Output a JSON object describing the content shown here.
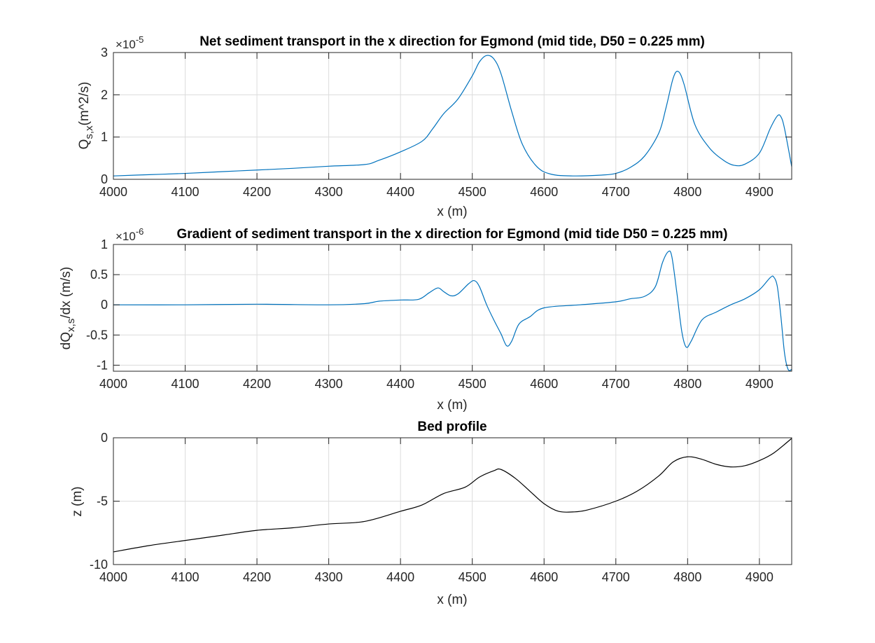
{
  "chart_data": [
    {
      "type": "line",
      "title": "Net sediment transport in the x direction for Egmond (mid tide, D50 = 0.225 mm)",
      "xlabel": "x (m)",
      "ylabel": "Q",
      "ylabel_sub": "s,x",
      "ylabel_suffix": "(m^2/s)",
      "exponent_base": "×10",
      "exponent_power": "-5",
      "xlim": [
        4000,
        4945
      ],
      "ylim": [
        0,
        3
      ],
      "x_ticks": [
        "4000",
        "4100",
        "4200",
        "4300",
        "4400",
        "4500",
        "4600",
        "4700",
        "4800",
        "4900"
      ],
      "y_ticks": [
        "0",
        "1",
        "2",
        "3"
      ],
      "grid": true,
      "color": "#0072bd",
      "series": [
        {
          "x": [
            4000,
            4050,
            4100,
            4150,
            4200,
            4250,
            4300,
            4350,
            4370,
            4400,
            4430,
            4445,
            4460,
            4480,
            4500,
            4510,
            4520,
            4530,
            4540,
            4555,
            4570,
            4590,
            4610,
            4640,
            4680,
            4700,
            4720,
            4740,
            4760,
            4770,
            4780,
            4787,
            4795,
            4810,
            4830,
            4850,
            4865,
            4880,
            4900,
            4915,
            4925,
            4930,
            4935,
            4945
          ],
          "y": [
            0.08,
            0.11,
            0.14,
            0.18,
            0.22,
            0.26,
            0.31,
            0.35,
            0.45,
            0.65,
            0.9,
            1.2,
            1.55,
            1.9,
            2.45,
            2.78,
            2.93,
            2.85,
            2.5,
            1.6,
            0.82,
            0.3,
            0.12,
            0.08,
            0.1,
            0.14,
            0.28,
            0.55,
            1.1,
            1.7,
            2.4,
            2.55,
            2.25,
            1.3,
            0.75,
            0.45,
            0.33,
            0.36,
            0.62,
            1.2,
            1.5,
            1.48,
            1.2,
            0.3
          ]
        }
      ]
    },
    {
      "type": "line",
      "title": "Gradient of sediment transport in the x direction for Egmond (mid tide D50 = 0.225 mm)",
      "xlabel": "x (m)",
      "ylabel": "dQ",
      "ylabel_sub": "x,s",
      "ylabel_suffix": "/dx (m/s)",
      "exponent_base": "×10",
      "exponent_power": "-6",
      "xlim": [
        4000,
        4945
      ],
      "ylim": [
        -1.1,
        1
      ],
      "x_ticks": [
        "4000",
        "4100",
        "4200",
        "4300",
        "4400",
        "4500",
        "4600",
        "4700",
        "4800",
        "4900"
      ],
      "y_ticks": [
        "1",
        "0.5",
        "0",
        "-0.5",
        "-1"
      ],
      "grid": true,
      "color": "#0072bd",
      "series": [
        {
          "x": [
            4000,
            4100,
            4200,
            4300,
            4350,
            4370,
            4400,
            4425,
            4440,
            4452,
            4460,
            4470,
            4480,
            4495,
            4503,
            4510,
            4520,
            4530,
            4540,
            4548,
            4555,
            4565,
            4580,
            4600,
            4650,
            4700,
            4720,
            4740,
            4755,
            4765,
            4773,
            4778,
            4785,
            4792,
            4798,
            4805,
            4820,
            4840,
            4860,
            4880,
            4900,
            4915,
            4920,
            4925,
            4930,
            4935,
            4940,
            4945
          ],
          "y": [
            0.0,
            0.0,
            0.01,
            0.0,
            0.02,
            0.06,
            0.08,
            0.09,
            0.2,
            0.28,
            0.22,
            0.15,
            0.18,
            0.35,
            0.4,
            0.3,
            0.0,
            -0.25,
            -0.48,
            -0.68,
            -0.6,
            -0.32,
            -0.2,
            -0.05,
            0.0,
            0.05,
            0.1,
            0.14,
            0.3,
            0.7,
            0.88,
            0.8,
            0.2,
            -0.45,
            -0.7,
            -0.6,
            -0.25,
            -0.12,
            0.0,
            0.1,
            0.25,
            0.45,
            0.46,
            0.3,
            -0.2,
            -0.8,
            -1.07,
            -1.07
          ]
        }
      ]
    },
    {
      "type": "line",
      "title": "Bed profile",
      "xlabel": "x (m)",
      "ylabel": "z (m)",
      "xlim": [
        4000,
        4945
      ],
      "ylim": [
        -10,
        0
      ],
      "x_ticks": [
        "4000",
        "4100",
        "4200",
        "4300",
        "4400",
        "4500",
        "4600",
        "4700",
        "4800",
        "4900"
      ],
      "y_ticks": [
        "0",
        "-5",
        "-10"
      ],
      "grid": true,
      "color": "#000000",
      "series": [
        {
          "x": [
            4000,
            4050,
            4100,
            4150,
            4200,
            4250,
            4300,
            4350,
            4400,
            4430,
            4460,
            4490,
            4510,
            4530,
            4540,
            4560,
            4580,
            4600,
            4620,
            4640,
            4660,
            4700,
            4730,
            4760,
            4780,
            4800,
            4820,
            4840,
            4860,
            4880,
            4900,
            4920,
            4945
          ],
          "y": [
            -9.0,
            -8.5,
            -8.1,
            -7.7,
            -7.3,
            -7.1,
            -6.8,
            -6.6,
            -5.8,
            -5.3,
            -4.4,
            -3.9,
            -3.1,
            -2.6,
            -2.5,
            -3.2,
            -4.2,
            -5.2,
            -5.8,
            -5.85,
            -5.7,
            -5.0,
            -4.2,
            -3.0,
            -1.9,
            -1.5,
            -1.7,
            -2.1,
            -2.3,
            -2.2,
            -1.8,
            -1.2,
            -0.05
          ]
        }
      ]
    }
  ]
}
